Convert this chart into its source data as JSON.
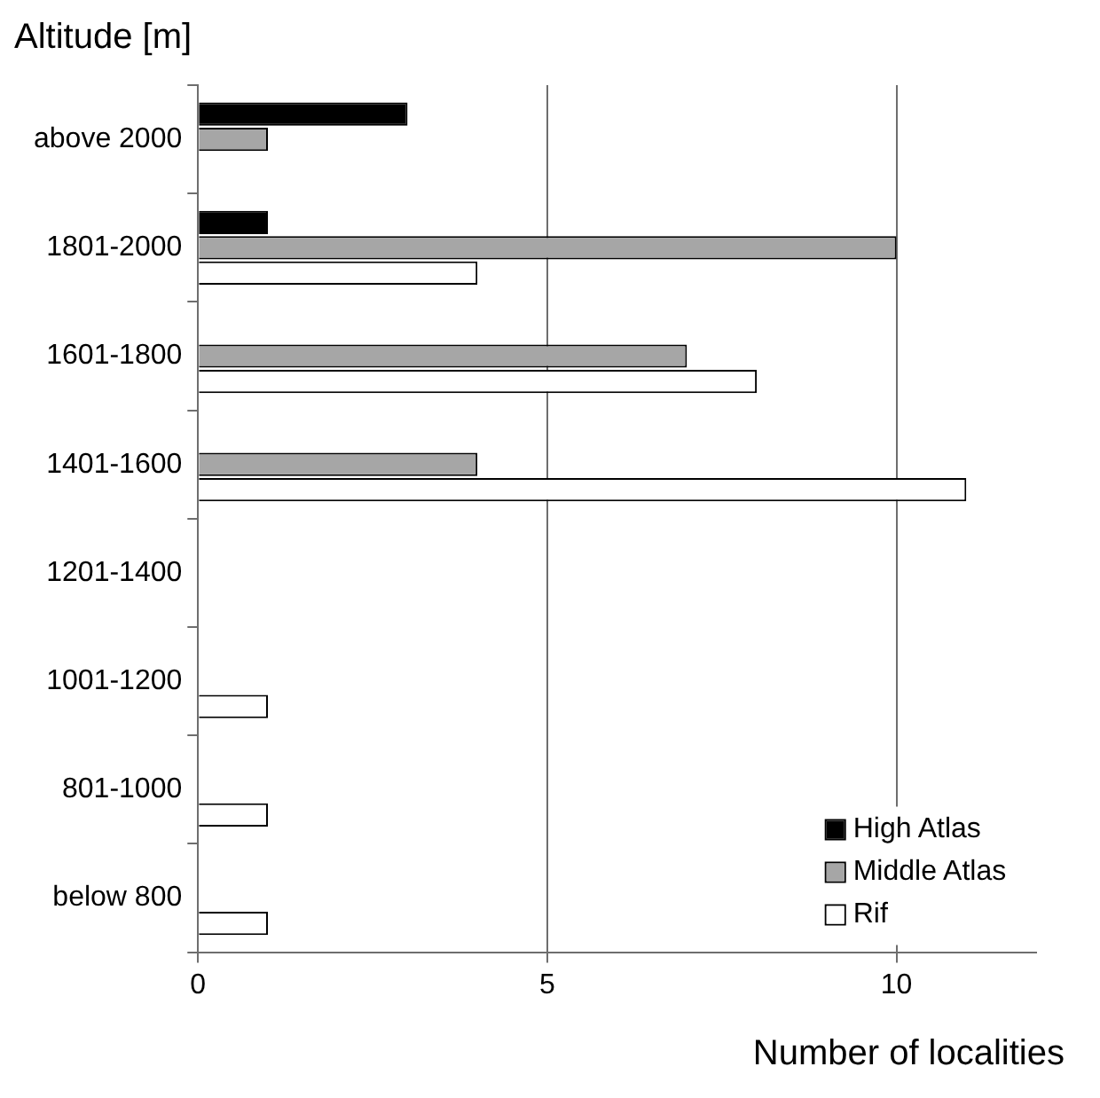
{
  "chart_data": {
    "type": "bar",
    "orientation": "horizontal",
    "xlabel": "Number of localities",
    "ylabel": "Altitude [m]",
    "categories": [
      "above 2000",
      "1801-2000",
      "1601-1800",
      "1401-1600",
      "1201-1400",
      "1001-1200",
      "801-1000",
      "below 800"
    ],
    "series": [
      {
        "name": "High Atlas",
        "color": "#000000",
        "values": [
          3,
          1,
          null,
          null,
          null,
          null,
          null,
          null
        ]
      },
      {
        "name": "Middle Atlas",
        "color": "#a6a6a6",
        "values": [
          1,
          10,
          7,
          4,
          null,
          null,
          null,
          null
        ]
      },
      {
        "name": "Rif",
        "color": "#ffffff",
        "values": [
          null,
          4,
          8,
          11,
          null,
          1,
          1,
          1
        ]
      }
    ],
    "xlim": [
      0,
      12
    ],
    "xticks": [
      0,
      5,
      10
    ],
    "grid": "x",
    "legend": "bottom right"
  }
}
